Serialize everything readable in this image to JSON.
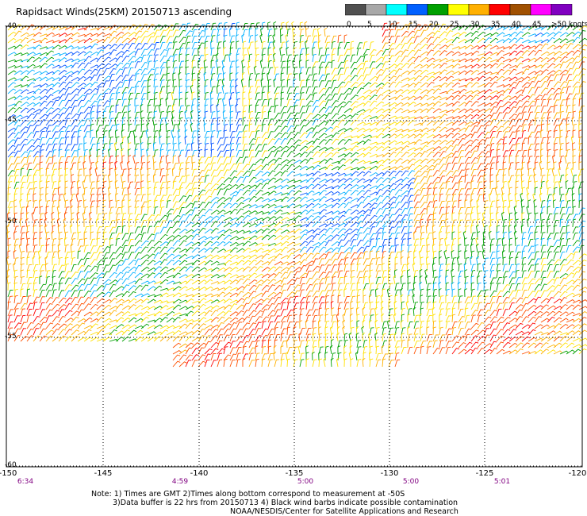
{
  "title": "Rapidsact Winds(25KM) 20150713 ascending",
  "legend": {
    "labels": [
      "0",
      "5",
      "10",
      "15",
      "20",
      "25",
      "30",
      "35",
      "40",
      "45",
      ">50 knots"
    ],
    "colors": [
      "#505050",
      "#a8a8a8",
      "#00ffff",
      "#0060ff",
      "#00a000",
      "#ffff00",
      "#ffb000",
      "#ff0000",
      "#a05000",
      "#ff00ff",
      "#8000c0"
    ]
  },
  "axes": {
    "lat_labels": [
      "-40",
      "-45",
      "-50",
      "-55",
      "-60"
    ],
    "lon_labels": [
      "-150",
      "-145",
      "-140",
      "-135",
      "-130",
      "-125",
      "-120"
    ],
    "time_labels": [
      "6:34",
      "4:59",
      "5:00",
      "5:00",
      "5:01"
    ]
  },
  "notes": {
    "line1": "Note: 1) Times are GMT 2)Times along bottom correspond to measurement at -50S",
    "line2": "3)Data buffer is 22 hrs from 20150713 4) Black wind barbs indicate possible contamination",
    "line3": "NOAA/NESDIS/Center for Satellite Applications and Research"
  }
}
